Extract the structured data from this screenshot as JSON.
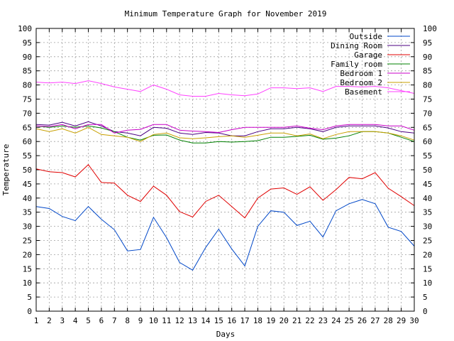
{
  "chart_data": {
    "type": "line",
    "title": "Minimum Temperature Graph for November 2019",
    "xlabel": "Days",
    "ylabel": "Temperature",
    "xlim": [
      1,
      30
    ],
    "ylim": [
      0,
      100
    ],
    "x_ticks": [
      1,
      2,
      3,
      4,
      5,
      6,
      7,
      8,
      9,
      10,
      11,
      12,
      13,
      14,
      15,
      16,
      17,
      18,
      19,
      20,
      21,
      22,
      23,
      24,
      25,
      26,
      27,
      28,
      29,
      30
    ],
    "y_ticks": [
      0,
      5,
      10,
      15,
      20,
      25,
      30,
      35,
      40,
      45,
      50,
      55,
      60,
      65,
      70,
      75,
      80,
      85,
      90,
      95,
      100
    ],
    "grid": true,
    "legend_position": "top-right",
    "x": [
      1,
      2,
      3,
      4,
      5,
      6,
      7,
      8,
      9,
      10,
      11,
      12,
      13,
      14,
      15,
      16,
      17,
      18,
      19,
      20,
      21,
      22,
      23,
      24,
      25,
      26,
      27,
      28,
      29,
      30
    ],
    "series": [
      {
        "name": "Outside",
        "color": "#0047c8",
        "values": [
          37,
          36.3,
          33.5,
          32,
          37,
          32.5,
          28.8,
          21.3,
          21.8,
          33.2,
          26,
          17.2,
          14.5,
          22.5,
          29,
          22,
          16,
          30,
          35.5,
          35,
          30.3,
          31.8,
          26.2,
          35.5,
          38,
          39.5,
          38,
          29.7,
          28.2,
          23
        ]
      },
      {
        "name": "Dining Room",
        "color": "#4b0082",
        "values": [
          66,
          65.8,
          66.8,
          65.5,
          67,
          65.5,
          63.5,
          63,
          62,
          65,
          64.7,
          63,
          62.5,
          63.2,
          63,
          62,
          62,
          63.5,
          64.5,
          64.5,
          65,
          64.5,
          63.5,
          65,
          65.5,
          65.5,
          65.5,
          64.8,
          63.5,
          63
        ]
      },
      {
        "name": "Garage",
        "color": "#e00000",
        "values": [
          50.3,
          49.3,
          49,
          47.5,
          51.8,
          45.5,
          45.3,
          41,
          38.8,
          44.2,
          41,
          35.2,
          33.3,
          38.8,
          41,
          37,
          33,
          40,
          43.2,
          43.6,
          41.3,
          44,
          39.2,
          43,
          47.3,
          46.8,
          49,
          43.5,
          40.5,
          37.3
        ]
      },
      {
        "name": "Family room",
        "color": "#008000",
        "values": [
          65.5,
          65,
          65.5,
          65,
          65.5,
          64.8,
          63.5,
          61.5,
          60.5,
          62.2,
          62.3,
          60.5,
          59.5,
          59.5,
          60,
          59.8,
          60,
          60.3,
          61.5,
          61.5,
          61.8,
          62.2,
          60.8,
          61.2,
          62,
          63.5,
          63.5,
          63,
          61.5,
          60
        ]
      },
      {
        "name": "Bedroom 1",
        "color": "#c800c8",
        "values": [
          65.5,
          65.3,
          66,
          64.5,
          66,
          66,
          63,
          64,
          64.3,
          66,
          66,
          64,
          63.7,
          63.5,
          63.2,
          64.2,
          65,
          65,
          65,
          65,
          65.5,
          64.7,
          64.2,
          65.5,
          66,
          66,
          66,
          65.5,
          65.5,
          64
        ]
      },
      {
        "name": "Bedroom 2",
        "color": "#c8a000",
        "values": [
          64.5,
          63.5,
          64.5,
          63,
          65,
          62.5,
          62,
          61.5,
          60,
          62.5,
          63,
          61.3,
          61,
          61.3,
          61.7,
          62,
          61.5,
          62.2,
          63,
          63,
          62,
          62.7,
          61,
          62.5,
          63.5,
          63.5,
          63.5,
          63,
          62,
          60.5
        ]
      },
      {
        "name": "Basement",
        "color": "#ff40ff",
        "values": [
          81,
          80.7,
          81,
          80.5,
          81.5,
          80.5,
          79.3,
          78.5,
          77.7,
          80,
          78.5,
          76.5,
          76,
          76,
          77,
          76.5,
          76.2,
          76.8,
          79,
          79,
          78.7,
          79,
          77.7,
          79.5,
          79.5,
          79.3,
          79.5,
          79,
          78,
          77
        ]
      }
    ]
  }
}
